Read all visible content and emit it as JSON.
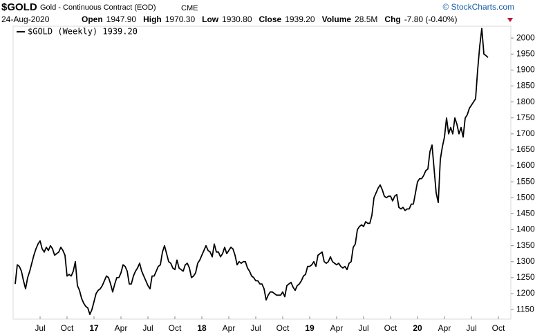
{
  "header": {
    "symbol": "$GOLD",
    "name": "Gold - Continuous Contract (EOD)",
    "exchange": "CME",
    "date": "24-Aug-2020",
    "quote": [
      {
        "label": "Open",
        "value": "1947.90"
      },
      {
        "label": "High",
        "value": "1970.30"
      },
      {
        "label": "Low",
        "value": "1930.80"
      },
      {
        "label": "Close",
        "value": "1939.20"
      },
      {
        "label": "Volume",
        "value": "28.5M"
      },
      {
        "label": "Chg",
        "value": "-7.80 (-0.40%)"
      }
    ],
    "copyright": "© StockCharts.com"
  },
  "chart_data": {
    "type": "line",
    "series": [
      {
        "name": "$GOLD (Weekly) 1939.20",
        "color": "#000000",
        "values": [
          1230,
          1290,
          1285,
          1270,
          1240,
          1215,
          1250,
          1270,
          1295,
          1320,
          1340,
          1355,
          1365,
          1340,
          1330,
          1345,
          1335,
          1350,
          1340,
          1320,
          1325,
          1330,
          1345,
          1335,
          1320,
          1255,
          1260,
          1255,
          1270,
          1300,
          1225,
          1210,
          1185,
          1170,
          1160,
          1155,
          1135,
          1150,
          1175,
          1200,
          1210,
          1215,
          1225,
          1240,
          1255,
          1250,
          1230,
          1205,
          1230,
          1250,
          1250,
          1265,
          1290,
          1285,
          1270,
          1230,
          1230,
          1255,
          1270,
          1280,
          1295,
          1270,
          1255,
          1240,
          1225,
          1215,
          1255,
          1255,
          1270,
          1285,
          1290,
          1330,
          1350,
          1325,
          1300,
          1295,
          1280,
          1275,
          1305,
          1280,
          1275,
          1270,
          1290,
          1295,
          1280,
          1250,
          1255,
          1265,
          1295,
          1305,
          1320,
          1335,
          1350,
          1335,
          1330,
          1315,
          1355,
          1330,
          1330,
          1315,
          1325,
          1345,
          1325,
          1335,
          1345,
          1340,
          1320,
          1290,
          1300,
          1295,
          1300,
          1300,
          1280,
          1270,
          1255,
          1250,
          1240,
          1240,
          1230,
          1230,
          1215,
          1180,
          1195,
          1205,
          1205,
          1200,
          1195,
          1195,
          1195,
          1205,
          1190,
          1225,
          1230,
          1235,
          1220,
          1210,
          1225,
          1230,
          1240,
          1255,
          1260,
          1285,
          1285,
          1290,
          1300,
          1285,
          1320,
          1325,
          1330,
          1300,
          1295,
          1300,
          1315,
          1300,
          1295,
          1290,
          1295,
          1285,
          1280,
          1285,
          1275,
          1295,
          1300,
          1345,
          1355,
          1400,
          1410,
          1415,
          1410,
          1425,
          1420,
          1420,
          1445,
          1500,
          1515,
          1530,
          1540,
          1525,
          1505,
          1500,
          1505,
          1505,
          1490,
          1505,
          1510,
          1470,
          1465,
          1470,
          1460,
          1465,
          1465,
          1480,
          1480,
          1515,
          1550,
          1560,
          1560,
          1570,
          1585,
          1590,
          1645,
          1665,
          1590,
          1515,
          1485,
          1620,
          1660,
          1690,
          1750,
          1700,
          1720,
          1700,
          1750,
          1730,
          1700,
          1720,
          1690,
          1750,
          1760,
          1780,
          1790,
          1800,
          1810,
          1900,
          1975,
          2030,
          1950,
          1945,
          1939.2
        ]
      }
    ],
    "xlim": [
      -1,
      239
    ],
    "xticks": [
      {
        "value": 12,
        "label": "Jul"
      },
      {
        "value": 25,
        "label": "Oct"
      },
      {
        "value": 38,
        "label": "17"
      },
      {
        "value": 51,
        "label": "Apr"
      },
      {
        "value": 64,
        "label": "Jul"
      },
      {
        "value": 77,
        "label": "Oct"
      },
      {
        "value": 90,
        "label": "18"
      },
      {
        "value": 103,
        "label": "Apr"
      },
      {
        "value": 116,
        "label": "Jul"
      },
      {
        "value": 129,
        "label": "Oct"
      },
      {
        "value": 142,
        "label": "19"
      },
      {
        "value": 155,
        "label": "Apr"
      },
      {
        "value": 168,
        "label": "Jul"
      },
      {
        "value": 181,
        "label": "Oct"
      },
      {
        "value": 194,
        "label": "20"
      },
      {
        "value": 207,
        "label": "Apr"
      },
      {
        "value": 220,
        "label": "Jul"
      },
      {
        "value": 233,
        "label": "Oct"
      }
    ],
    "ylim": [
      1120,
      2037
    ],
    "yticks": [
      1150,
      1200,
      1250,
      1300,
      1350,
      1400,
      1450,
      1500,
      1550,
      1600,
      1650,
      1700,
      1750,
      1800,
      1850,
      1900,
      1950,
      2000
    ],
    "yaxis_side": "right",
    "grid": false
  }
}
